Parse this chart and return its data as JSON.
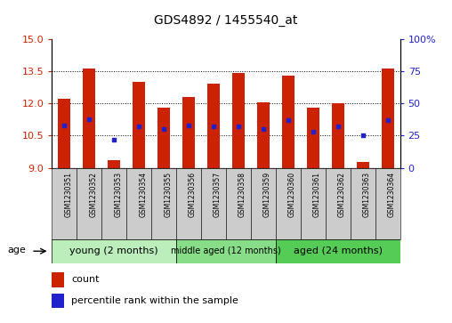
{
  "title": "GDS4892 / 1455540_at",
  "samples": [
    "GSM1230351",
    "GSM1230352",
    "GSM1230353",
    "GSM1230354",
    "GSM1230355",
    "GSM1230356",
    "GSM1230357",
    "GSM1230358",
    "GSM1230359",
    "GSM1230360",
    "GSM1230361",
    "GSM1230362",
    "GSM1230363",
    "GSM1230364"
  ],
  "counts": [
    12.2,
    13.6,
    9.35,
    13.0,
    11.8,
    12.3,
    12.9,
    13.4,
    12.05,
    13.3,
    11.8,
    12.0,
    9.3,
    13.6
  ],
  "percentiles": [
    33,
    38,
    22,
    32,
    30,
    33,
    32,
    32,
    30,
    37,
    28,
    32,
    25,
    37
  ],
  "baseline": 9,
  "ylim_left": [
    9,
    15
  ],
  "ylim_right": [
    0,
    100
  ],
  "yticks_left": [
    9,
    10.5,
    12,
    13.5,
    15
  ],
  "yticks_right": [
    0,
    25,
    50,
    75,
    100
  ],
  "group_labels": [
    "young (2 months)",
    "middle aged (12 months)",
    "aged (24 months)"
  ],
  "group_starts": [
    0,
    5,
    9
  ],
  "group_ends": [
    4,
    8,
    13
  ],
  "group_colors": [
    "#bbeebb",
    "#88dd88",
    "#55cc55"
  ],
  "bar_color": "#cc2200",
  "percentile_color": "#2222cc",
  "bar_width": 0.5,
  "tick_label_color_left": "#cc2200",
  "tick_label_color_right": "#2222cc",
  "age_label": "age",
  "gray_box_color": "#cccccc"
}
